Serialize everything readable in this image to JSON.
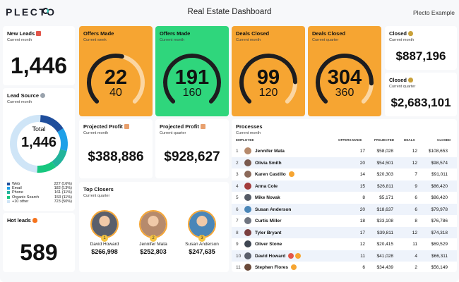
{
  "header": {
    "logo": "PLECTO",
    "title": "Real Estate Dashboard",
    "org": "Plecto Example"
  },
  "new_leads": {
    "title": "New Leads",
    "subtitle": "Current month",
    "value": "1,446"
  },
  "lead_source": {
    "title": "Lead Source",
    "subtitle": "Current month",
    "center_label": "Total",
    "center_value": "1,446",
    "items": [
      {
        "name": "Web",
        "value": "227 (16%)",
        "color": "#1f4e9c",
        "share": 16
      },
      {
        "name": "Email",
        "value": "182 (13%)",
        "color": "#1ea0e8",
        "share": 13
      },
      {
        "name": "Phone",
        "value": "161 (11%)",
        "color": "#22b39b",
        "share": 11
      },
      {
        "name": "Organic Search",
        "value": "153 (11%)",
        "color": "#17c77f",
        "share": 11
      },
      {
        "name": "+10 other",
        "value": "723 (50%)",
        "color": "#cfe5f7",
        "share": 50
      }
    ]
  },
  "hot_leads": {
    "title": "Hot leads",
    "value": "589"
  },
  "gauges": [
    {
      "title": "Offers Made",
      "subtitle": "Current week",
      "value": "22",
      "target": "40",
      "progress": 0.55,
      "color": "#f6a532"
    },
    {
      "title": "Offers Made",
      "subtitle": "Current month",
      "value": "191",
      "target": "160",
      "progress": 1.0,
      "color": "#2fd67c"
    },
    {
      "title": "Deals Closed",
      "subtitle": "Current month",
      "value": "99",
      "target": "120",
      "progress": 0.83,
      "color": "#f6a532"
    },
    {
      "title": "Deals Closed",
      "subtitle": "Current quarter",
      "value": "304",
      "target": "360",
      "progress": 0.84,
      "color": "#f6a532"
    }
  ],
  "closed_month": {
    "title": "Closed",
    "subtitle": "Current month",
    "value": "$887,196"
  },
  "closed_quarter": {
    "title": "Closed",
    "subtitle": "Current quarter",
    "value": "$2,683,101"
  },
  "profit_month": {
    "title": "Projected Profit",
    "subtitle": "Current month",
    "value": "$388,886"
  },
  "profit_quarter": {
    "title": "Projected Profit",
    "subtitle": "Current quarter",
    "value": "$928,627"
  },
  "top_closers": {
    "title": "Top Closers",
    "subtitle": "Current quarter",
    "people": [
      {
        "rank": "1",
        "name": "David Howard",
        "amount": "$266,998",
        "avatar_color": "#5a5f6b"
      },
      {
        "rank": "2",
        "name": "Jennifer Mata",
        "amount": "$252,803",
        "avatar_color": "#b68a6c"
      },
      {
        "rank": "3",
        "name": "Susan Anderson",
        "amount": "$247,635",
        "avatar_color": "#4a86b8"
      }
    ]
  },
  "processes": {
    "title": "Processes",
    "subtitle": "Current month",
    "columns": {
      "employee": "EMPLOYEE",
      "offers": "OFFERS MADE",
      "projected": "PROJECTED",
      "deals": "DEALS",
      "closed": "CLOSED"
    },
    "rows": [
      {
        "rank": "1",
        "name": "Jennifer Mata",
        "offers": "17",
        "projected": "$58,028",
        "deals": "12",
        "closed": "$108,653",
        "avatar_color": "#b68a6c",
        "badges": []
      },
      {
        "rank": "2",
        "name": "Olivia Smith",
        "offers": "20",
        "projected": "$54,501",
        "deals": "12",
        "closed": "$98,574",
        "avatar_color": "#7a5a4e",
        "badges": []
      },
      {
        "rank": "3",
        "name": "Karen Castillo",
        "offers": "14",
        "projected": "$20,303",
        "deals": "7",
        "closed": "$91,011",
        "avatar_color": "#8c6a5a",
        "badges": [
          "#f6a532"
        ]
      },
      {
        "rank": "4",
        "name": "Anna Cole",
        "offers": "15",
        "projected": "$26,811",
        "deals": "9",
        "closed": "$86,420",
        "avatar_color": "#a33c3c",
        "badges": []
      },
      {
        "rank": "5",
        "name": "Mike Novak",
        "offers": "8",
        "projected": "$5,171",
        "deals": "6",
        "closed": "$86,420",
        "avatar_color": "#555b66",
        "badges": []
      },
      {
        "rank": "6",
        "name": "Susan Anderson",
        "offers": "20",
        "projected": "$18,637",
        "deals": "6",
        "closed": "$79,978",
        "avatar_color": "#4a86b8",
        "badges": []
      },
      {
        "rank": "7",
        "name": "Curtis Miller",
        "offers": "18",
        "projected": "$33,108",
        "deals": "8",
        "closed": "$76,786",
        "avatar_color": "#6f7480",
        "badges": []
      },
      {
        "rank": "8",
        "name": "Tyler Bryant",
        "offers": "17",
        "projected": "$39,811",
        "deals": "12",
        "closed": "$74,318",
        "avatar_color": "#7b3f3f",
        "badges": []
      },
      {
        "rank": "9",
        "name": "Oliver Stone",
        "offers": "12",
        "projected": "$20,415",
        "deals": "11",
        "closed": "$69,529",
        "avatar_color": "#3f4652",
        "badges": []
      },
      {
        "rank": "10",
        "name": "David Howard",
        "offers": "11",
        "projected": "$41,028",
        "deals": "4",
        "closed": "$66,311",
        "avatar_color": "#5a5f6b",
        "badges": [
          "#e2564b",
          "#f6a532"
        ]
      },
      {
        "rank": "11",
        "name": "Stephen Flores",
        "offers": "6",
        "projected": "$34,439",
        "deals": "2",
        "closed": "$56,149",
        "avatar_color": "#6a4a3a",
        "badges": [
          "#f6a532"
        ]
      }
    ]
  }
}
